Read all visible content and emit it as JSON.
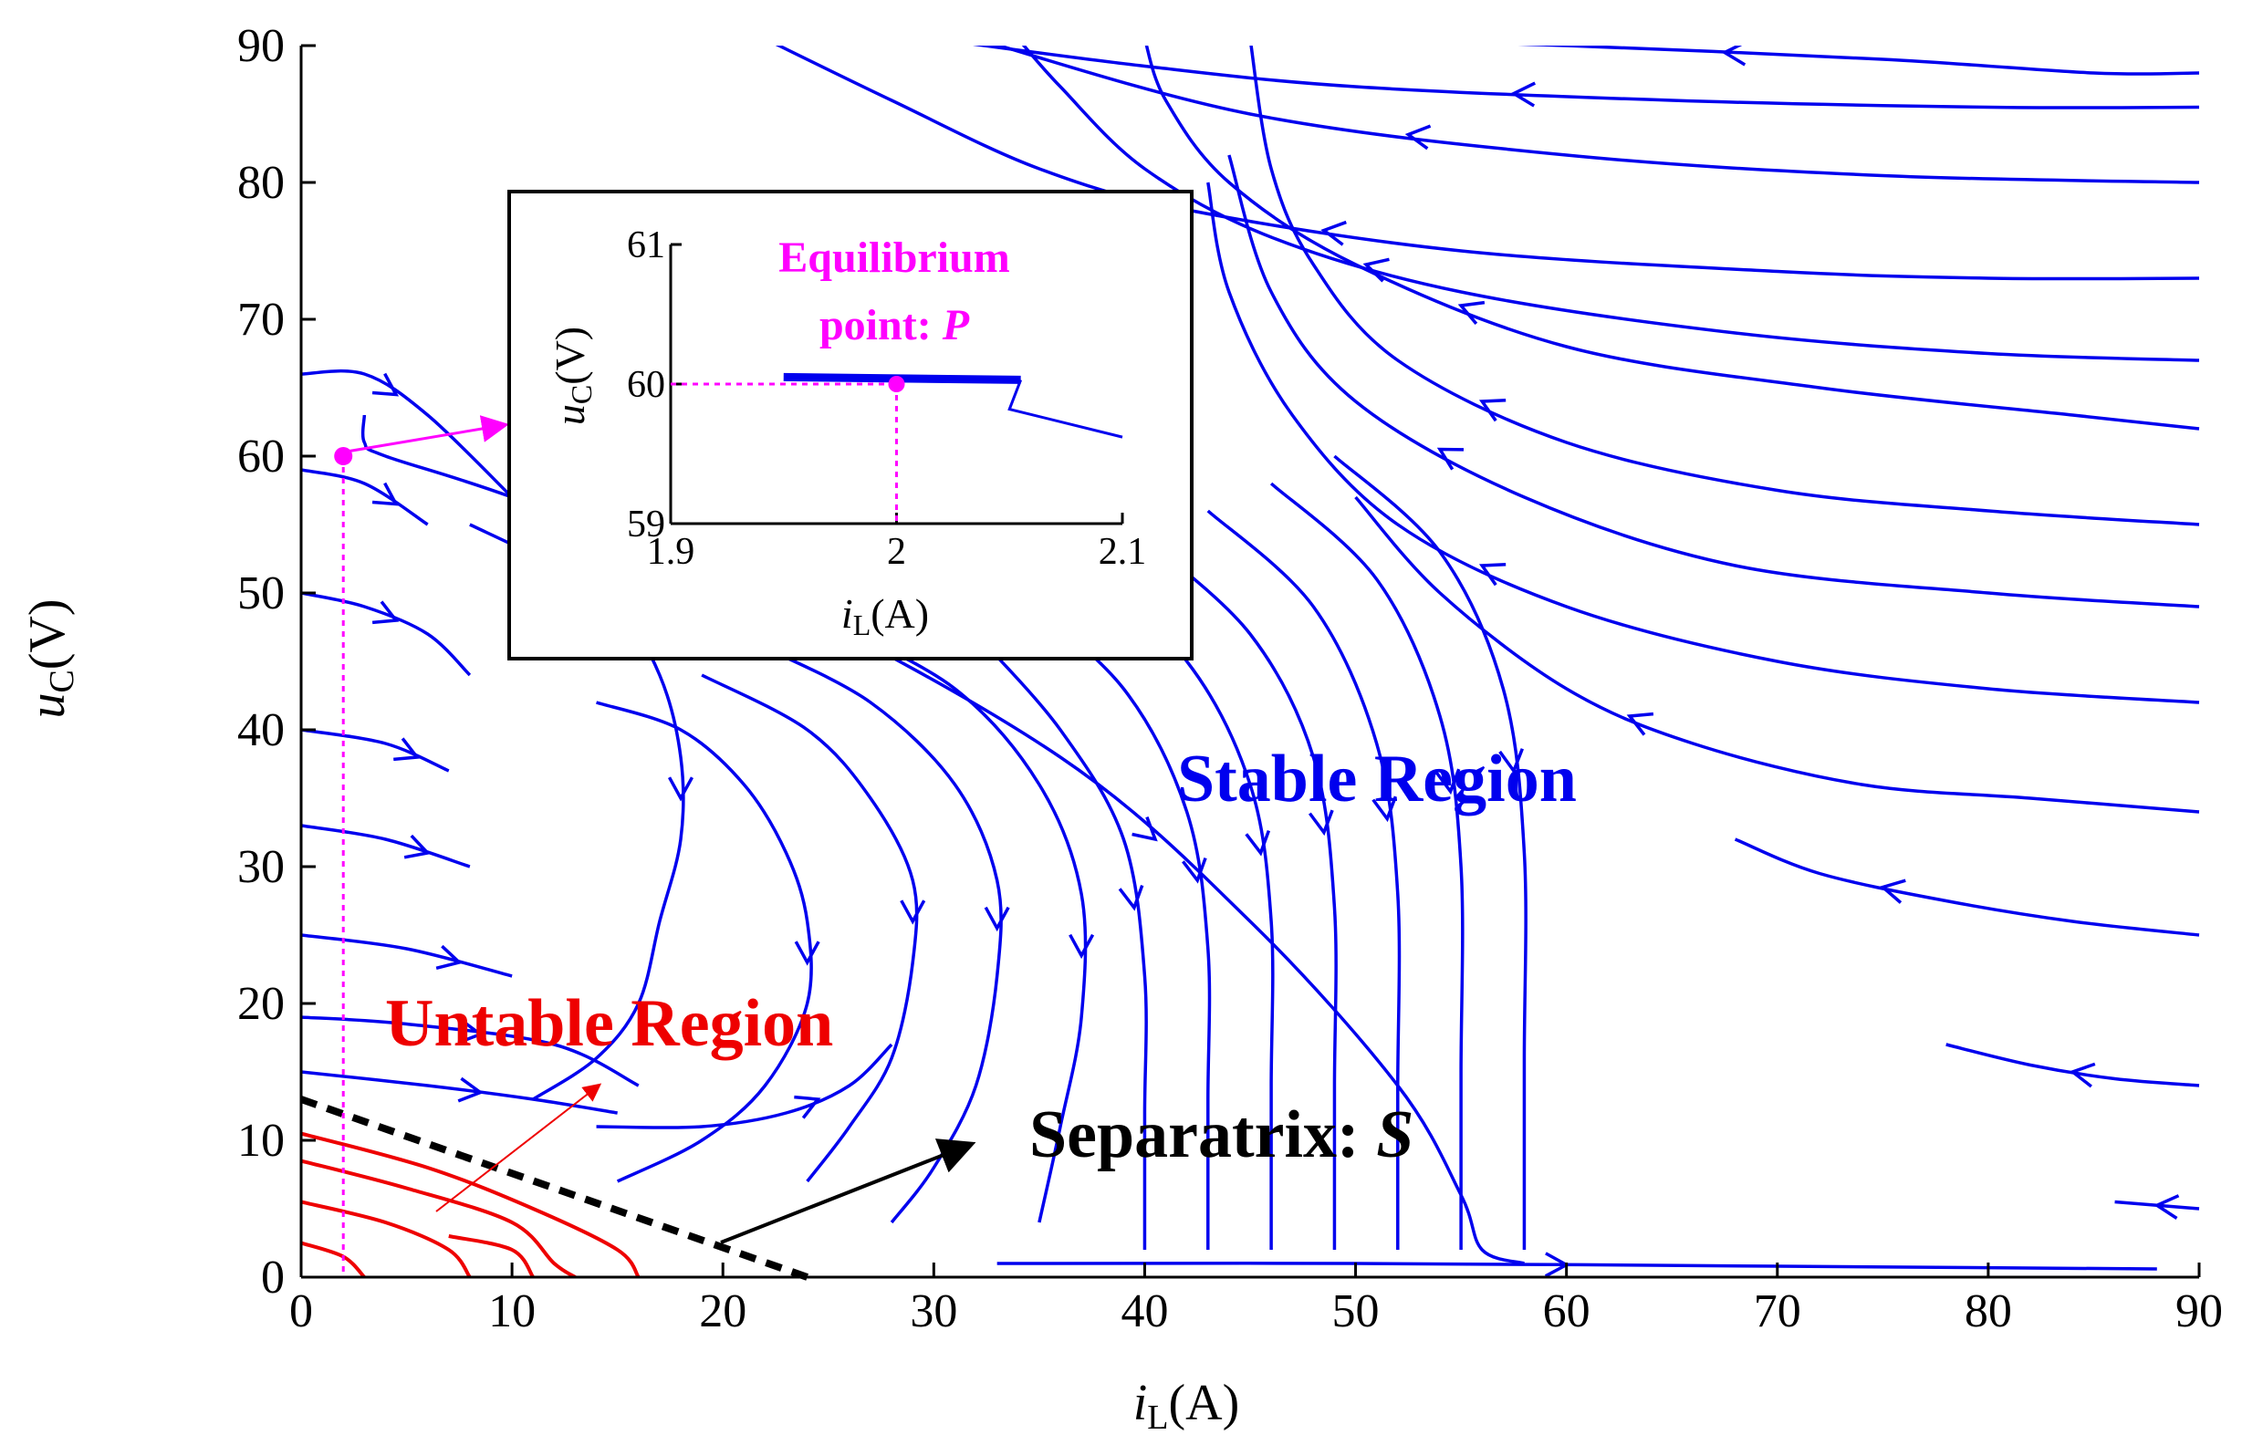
{
  "chart_data": [
    {
      "type": "scatter",
      "title": "",
      "xlabel_var": "i",
      "xlabel_sub": "L",
      "xlabel_unit": "(A)",
      "ylabel_var": "u",
      "ylabel_sub": "C",
      "ylabel_unit": "(V)",
      "xlim": [
        0,
        90
      ],
      "ylim": [
        0,
        90
      ],
      "xticks": [
        0,
        10,
        20,
        30,
        40,
        50,
        60,
        70,
        80,
        90
      ],
      "yticks": [
        0,
        10,
        20,
        30,
        40,
        50,
        60,
        70,
        80,
        90
      ],
      "grid": false,
      "colors": {
        "stable": "#0000ee",
        "unstable": "#ee0000",
        "equilibrium": "#ff00ff",
        "separatrix": "#000000"
      },
      "equilibrium_point": {
        "x": 2,
        "y": 60
      },
      "separatrix": [
        [
          0,
          13
        ],
        [
          24,
          0
        ]
      ],
      "stable_trajectories": [
        [
          [
            90,
            88
          ],
          [
            85,
            88
          ],
          [
            75,
            89
          ],
          [
            60,
            90
          ],
          [
            48,
            90.5
          ]
        ],
        [
          [
            90,
            85.5
          ],
          [
            80,
            85.5
          ],
          [
            65,
            86
          ],
          [
            50,
            87
          ],
          [
            40,
            88.5
          ],
          [
            30,
            90.5
          ]
        ],
        [
          [
            90,
            73
          ],
          [
            80,
            73
          ],
          [
            70,
            73.5
          ],
          [
            55,
            75
          ],
          [
            42,
            78
          ],
          [
            35,
            81
          ],
          [
            28,
            86
          ],
          [
            22,
            90.5
          ]
        ],
        [
          [
            90,
            80
          ],
          [
            75,
            80.5
          ],
          [
            60,
            82
          ],
          [
            45,
            85
          ],
          [
            32,
            90.5
          ]
        ],
        [
          [
            90,
            67
          ],
          [
            80,
            67.5
          ],
          [
            68,
            69
          ],
          [
            55,
            72
          ],
          [
            46,
            76
          ],
          [
            40,
            81
          ],
          [
            36,
            87
          ],
          [
            34,
            90.5
          ]
        ],
        [
          [
            90,
            62
          ],
          [
            84,
            63
          ],
          [
            72,
            65
          ],
          [
            60,
            68
          ],
          [
            50,
            74
          ],
          [
            44,
            80
          ],
          [
            41,
            86
          ],
          [
            40,
            90.5
          ]
        ],
        [
          [
            3,
            63
          ],
          [
            3,
            61
          ],
          [
            4,
            60
          ],
          [
            10,
            57
          ],
          [
            22,
            50
          ],
          [
            36,
            38
          ],
          [
            45,
            26
          ],
          [
            52,
            14
          ],
          [
            55,
            6
          ],
          [
            56,
            2
          ],
          [
            58,
            1
          ]
        ],
        [
          [
            90,
            55
          ],
          [
            80,
            56
          ],
          [
            70,
            57.5
          ],
          [
            60,
            61
          ],
          [
            52,
            67
          ],
          [
            48,
            74
          ],
          [
            46,
            81
          ],
          [
            45,
            90.5
          ]
        ],
        [
          [
            90,
            49
          ],
          [
            80,
            50
          ],
          [
            68,
            52
          ],
          [
            58,
            57
          ],
          [
            50,
            64
          ],
          [
            46,
            72
          ],
          [
            44,
            82
          ]
        ],
        [
          [
            90,
            42
          ],
          [
            80,
            43
          ],
          [
            70,
            45
          ],
          [
            60,
            49
          ],
          [
            52,
            55
          ],
          [
            47,
            63
          ],
          [
            44,
            72
          ],
          [
            43,
            80
          ]
        ],
        [
          [
            90,
            34
          ],
          [
            82,
            35
          ],
          [
            74,
            36
          ],
          [
            66,
            39
          ],
          [
            60,
            43
          ],
          [
            54,
            50
          ],
          [
            50,
            57
          ]
        ],
        [
          [
            90,
            25
          ],
          [
            84,
            26
          ],
          [
            78,
            27.5
          ],
          [
            72,
            29.5
          ],
          [
            68,
            32
          ]
        ],
        [
          [
            90,
            14
          ],
          [
            86,
            14.5
          ],
          [
            82,
            15.5
          ],
          [
            78,
            17
          ]
        ],
        [
          [
            90,
            5
          ],
          [
            86,
            5.5
          ]
        ],
        [
          [
            8,
            55
          ],
          [
            12,
            52
          ],
          [
            15,
            49
          ],
          [
            17,
            44
          ],
          [
            18,
            38
          ],
          [
            18,
            32
          ],
          [
            17,
            26
          ],
          [
            16,
            20
          ],
          [
            14,
            16
          ],
          [
            11,
            13
          ]
        ],
        [
          [
            14,
            42
          ],
          [
            18,
            40
          ],
          [
            21,
            36
          ],
          [
            23,
            31
          ],
          [
            24,
            26
          ],
          [
            24,
            20
          ],
          [
            22,
            14
          ],
          [
            19,
            10
          ],
          [
            15,
            7
          ]
        ],
        [
          [
            19,
            44
          ],
          [
            24,
            40
          ],
          [
            27,
            35
          ],
          [
            29,
            29
          ],
          [
            29,
            23
          ],
          [
            28,
            16
          ],
          [
            26,
            11
          ],
          [
            24,
            7
          ]
        ],
        [
          [
            22,
            46
          ],
          [
            27,
            42
          ],
          [
            31,
            36
          ],
          [
            33,
            29
          ],
          [
            33,
            22
          ],
          [
            32,
            14
          ],
          [
            30,
            8
          ],
          [
            28,
            4
          ]
        ],
        [
          [
            25,
            48
          ],
          [
            31,
            43
          ],
          [
            35,
            36
          ],
          [
            37,
            28
          ],
          [
            37,
            19
          ],
          [
            36,
            11
          ],
          [
            35,
            4
          ]
        ],
        [
          [
            32,
            47
          ],
          [
            36,
            40
          ],
          [
            39,
            32
          ],
          [
            40,
            22
          ],
          [
            40,
            12
          ],
          [
            40,
            2
          ]
        ],
        [
          [
            34,
            50
          ],
          [
            39,
            43
          ],
          [
            42,
            34
          ],
          [
            43,
            24
          ],
          [
            43,
            13
          ],
          [
            43,
            2
          ]
        ],
        [
          [
            37,
            52
          ],
          [
            42,
            45
          ],
          [
            45,
            36
          ],
          [
            46,
            26
          ],
          [
            46,
            14
          ],
          [
            46,
            2
          ]
        ],
        [
          [
            40,
            54
          ],
          [
            45,
            47
          ],
          [
            48,
            38
          ],
          [
            49,
            27
          ],
          [
            49,
            14
          ],
          [
            49,
            2
          ]
        ],
        [
          [
            43,
            56
          ],
          [
            48,
            49
          ],
          [
            51,
            39
          ],
          [
            52,
            28
          ],
          [
            52,
            14
          ],
          [
            52,
            2
          ]
        ],
        [
          [
            46,
            58
          ],
          [
            51,
            51
          ],
          [
            54,
            41
          ],
          [
            55,
            30
          ],
          [
            55,
            15
          ],
          [
            55,
            2
          ]
        ],
        [
          [
            49,
            60
          ],
          [
            54,
            53
          ],
          [
            57,
            43
          ],
          [
            58,
            31
          ],
          [
            58,
            16
          ],
          [
            58,
            2
          ]
        ],
        [
          [
            0,
            66
          ],
          [
            3,
            66
          ],
          [
            6,
            63
          ],
          [
            10,
            57
          ]
        ],
        [
          [
            0,
            59
          ],
          [
            3,
            58
          ],
          [
            6,
            55
          ]
        ],
        [
          [
            0,
            50
          ],
          [
            3,
            49
          ],
          [
            6,
            47
          ],
          [
            8,
            44
          ]
        ],
        [
          [
            0,
            40
          ],
          [
            4,
            39
          ],
          [
            7,
            37
          ]
        ],
        [
          [
            0,
            33
          ],
          [
            4,
            32
          ],
          [
            8,
            30
          ]
        ],
        [
          [
            0,
            25
          ],
          [
            5,
            24
          ],
          [
            10,
            22
          ]
        ],
        [
          [
            0,
            19
          ],
          [
            5,
            18.5
          ],
          [
            12,
            17
          ],
          [
            16,
            14
          ]
        ],
        [
          [
            0,
            15
          ],
          [
            6,
            14
          ],
          [
            11,
            13
          ],
          [
            15,
            12
          ]
        ],
        [
          [
            14,
            11
          ],
          [
            19,
            11
          ],
          [
            23,
            12
          ],
          [
            26,
            14
          ],
          [
            28,
            17
          ]
        ],
        [
          [
            33,
            1
          ],
          [
            50,
            1
          ],
          [
            70,
            0.8
          ],
          [
            88,
            0.6
          ]
        ]
      ],
      "unstable_trajectories": [
        [
          [
            0,
            10.5
          ],
          [
            6,
            8
          ],
          [
            11,
            5
          ],
          [
            15,
            2
          ],
          [
            16,
            0
          ]
        ],
        [
          [
            0,
            8.5
          ],
          [
            5,
            6.5
          ],
          [
            10,
            4
          ],
          [
            12,
            1
          ],
          [
            13,
            0
          ]
        ],
        [
          [
            0,
            5.5
          ],
          [
            4,
            4
          ],
          [
            7,
            2
          ],
          [
            8,
            0
          ]
        ],
        [
          [
            0,
            2.5
          ],
          [
            2,
            1.5
          ],
          [
            3,
            0
          ]
        ],
        [
          [
            7,
            3
          ],
          [
            10,
            2
          ],
          [
            11,
            0
          ]
        ]
      ],
      "inset": {
        "xlim": [
          1.9,
          2.1
        ],
        "ylim": [
          59,
          61
        ],
        "xticks": [
          1.9,
          2,
          2.1
        ],
        "yticks": [
          59,
          60,
          61
        ],
        "equilibrium_point": {
          "x": 2,
          "y": 60
        },
        "trajectory": [
          [
            1.95,
            60.05
          ],
          [
            2.055,
            60.03
          ],
          [
            2.05,
            59.82
          ],
          [
            2.1,
            59.62
          ]
        ]
      }
    }
  ],
  "labels": {
    "stable_region": "Stable Region",
    "unstable_region": "Untable Region",
    "separatrix_text": "Separatrix: ",
    "separatrix_symbol": "S",
    "equilibrium_line1": "Equilibrium",
    "equilibrium_line2": "point: ",
    "equilibrium_symbol": "P"
  }
}
